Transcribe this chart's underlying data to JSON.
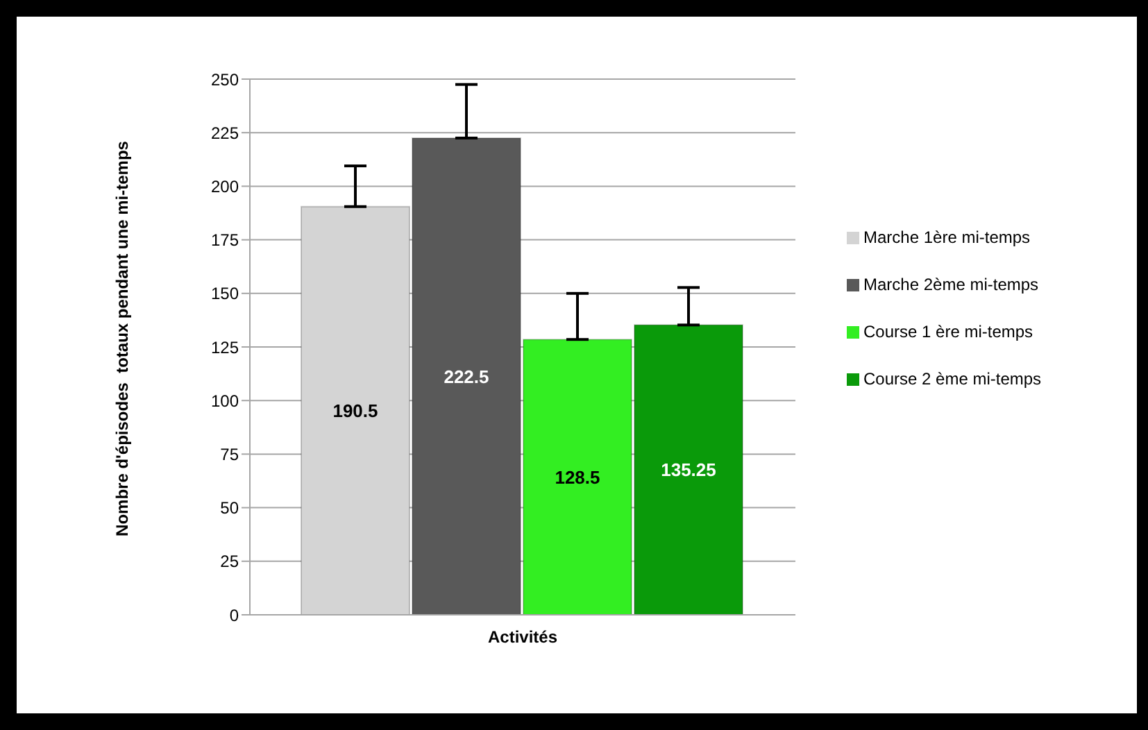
{
  "chart_data": {
    "type": "bar",
    "xlabel": "Activités",
    "ylabel": "Nombre d'épisodes  totaux pendant une mi-temps",
    "categories": [
      null
    ],
    "series": [
      {
        "name": "Marche 1ère mi-temps",
        "color": "#d4d4d4",
        "values": [
          190.5
        ],
        "errors": [
          19
        ]
      },
      {
        "name": "Marche 2ème mi-temps",
        "color": "#595959",
        "values": [
          222.5
        ],
        "errors": [
          25
        ]
      },
      {
        "name": "Course 1 ère mi-temps",
        "color": "#33ee22",
        "values": [
          128.5
        ],
        "errors": [
          21.5
        ]
      },
      {
        "name": "Course 2 ème mi-temps",
        "color": "#0a9a0a",
        "values": [
          135.25
        ],
        "errors": [
          17.5
        ]
      }
    ],
    "ylim": [
      0,
      250
    ],
    "yticks": [
      0,
      25,
      50,
      75,
      100,
      125,
      150,
      175,
      200,
      225,
      250
    ],
    "grid": "y",
    "legend": "right",
    "data_labels": true
  }
}
